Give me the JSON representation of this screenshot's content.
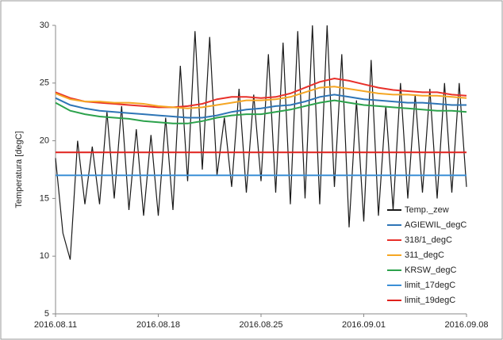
{
  "chart_data": {
    "type": "line",
    "y_label": "Temperatura [degC]",
    "ylim": [
      5,
      30
    ],
    "yticks": [
      5,
      10,
      15,
      20,
      25,
      30
    ],
    "xlim": [
      0,
      28
    ],
    "xticks": [
      {
        "value": 0,
        "label": "2016.08.11"
      },
      {
        "value": 7,
        "label": "2016.08.18"
      },
      {
        "value": 14,
        "label": "2016.08.25"
      },
      {
        "value": 21,
        "label": "2016.09.01"
      },
      {
        "value": 28,
        "label": "2016.09.08"
      }
    ],
    "series": [
      {
        "name": "Temp._zew",
        "color": "#1a1a1a",
        "x": [
          0,
          0.5,
          1,
          1.5,
          2,
          2.5,
          3,
          3.5,
          4,
          4.5,
          5,
          5.5,
          6,
          6.5,
          7,
          7.5,
          8,
          8.5,
          9,
          9.5,
          10,
          10.5,
          11,
          11.5,
          12,
          12.5,
          13,
          13.5,
          14,
          14.5,
          15,
          15.5,
          16,
          16.5,
          17,
          17.5,
          18,
          18.5,
          19,
          19.5,
          20,
          20.5,
          21,
          21.5,
          22,
          22.5,
          23,
          23.5,
          24,
          24.5,
          25,
          25.5,
          26,
          26.5,
          27,
          27.5,
          28
        ],
        "values": [
          18.5,
          12,
          9.7,
          20,
          14.5,
          19.5,
          14.5,
          22.5,
          15,
          23,
          14,
          21,
          13.5,
          20.5,
          13.5,
          22,
          14,
          26.5,
          16.5,
          29.5,
          17.5,
          29,
          17,
          22,
          16,
          24.5,
          15.5,
          24,
          16.5,
          27.5,
          15.5,
          28.5,
          14.5,
          29.5,
          15,
          30,
          14.5,
          30,
          16,
          27.5,
          12.5,
          23.5,
          13,
          27,
          13.5,
          23,
          14,
          25,
          15,
          24,
          15.5,
          24.5,
          15,
          25,
          15.5,
          25,
          16
        ]
      },
      {
        "name": "AGIEWIL_degC",
        "color": "#2e75b6",
        "x": [
          0,
          1,
          2,
          3,
          4,
          5,
          6,
          7,
          8,
          9,
          10,
          11,
          12,
          13,
          14,
          15,
          16,
          17,
          18,
          19,
          20,
          21,
          22,
          23,
          24,
          25,
          26,
          27,
          28
        ],
        "values": [
          23.7,
          23.1,
          22.8,
          22.6,
          22.5,
          22.4,
          22.3,
          22.2,
          22.1,
          22.0,
          22.0,
          22.2,
          22.5,
          22.7,
          22.8,
          23.0,
          23.1,
          23.4,
          23.8,
          24.0,
          23.8,
          23.6,
          23.5,
          23.4,
          23.3,
          23.3,
          23.2,
          23.1,
          23.1
        ]
      },
      {
        "name": "318/1_degC",
        "color": "#e8302a",
        "x": [
          0,
          1,
          2,
          3,
          4,
          5,
          6,
          7,
          8,
          9,
          10,
          11,
          12,
          13,
          14,
          15,
          16,
          17,
          18,
          19,
          20,
          21,
          22,
          23,
          24,
          25,
          26,
          27,
          28
        ],
        "values": [
          24.2,
          23.7,
          23.4,
          23.3,
          23.2,
          23.1,
          23.0,
          22.9,
          22.9,
          23.0,
          23.2,
          23.6,
          23.8,
          23.8,
          23.7,
          23.8,
          24.1,
          24.6,
          25.1,
          25.4,
          25.2,
          24.9,
          24.6,
          24.4,
          24.3,
          24.2,
          24.2,
          24.0,
          23.9
        ]
      },
      {
        "name": "311_degC",
        "color": "#f5a623",
        "x": [
          0,
          1,
          2,
          3,
          4,
          5,
          6,
          7,
          8,
          9,
          10,
          11,
          12,
          13,
          14,
          15,
          16,
          17,
          18,
          19,
          20,
          21,
          22,
          23,
          24,
          25,
          26,
          27,
          28
        ],
        "values": [
          24.1,
          23.6,
          23.4,
          23.4,
          23.3,
          23.3,
          23.2,
          23.0,
          22.9,
          22.8,
          22.9,
          23.1,
          23.3,
          23.5,
          23.5,
          23.6,
          23.8,
          24.2,
          24.6,
          24.7,
          24.5,
          24.3,
          24.1,
          24.0,
          24.0,
          23.9,
          23.9,
          23.8,
          23.7
        ]
      },
      {
        "name": "KRSW_degC",
        "color": "#2ca24c",
        "x": [
          0,
          1,
          2,
          3,
          4,
          5,
          6,
          7,
          8,
          9,
          10,
          11,
          12,
          13,
          14,
          15,
          16,
          17,
          18,
          19,
          20,
          21,
          22,
          23,
          24,
          25,
          26,
          27,
          28
        ],
        "values": [
          23.3,
          22.6,
          22.3,
          22.1,
          22.0,
          21.9,
          21.7,
          21.6,
          21.5,
          21.5,
          21.7,
          22.0,
          22.2,
          22.3,
          22.3,
          22.5,
          22.7,
          23.0,
          23.3,
          23.5,
          23.3,
          23.1,
          23.0,
          22.9,
          22.8,
          22.7,
          22.6,
          22.6,
          22.5
        ]
      },
      {
        "name": "limit_17degC",
        "color": "#3b8fd6",
        "x": [
          0,
          28
        ],
        "values": [
          17,
          17
        ]
      },
      {
        "name": "limit_19degC",
        "color": "#e0201c",
        "x": [
          0,
          28
        ],
        "values": [
          19,
          19
        ]
      }
    ]
  }
}
